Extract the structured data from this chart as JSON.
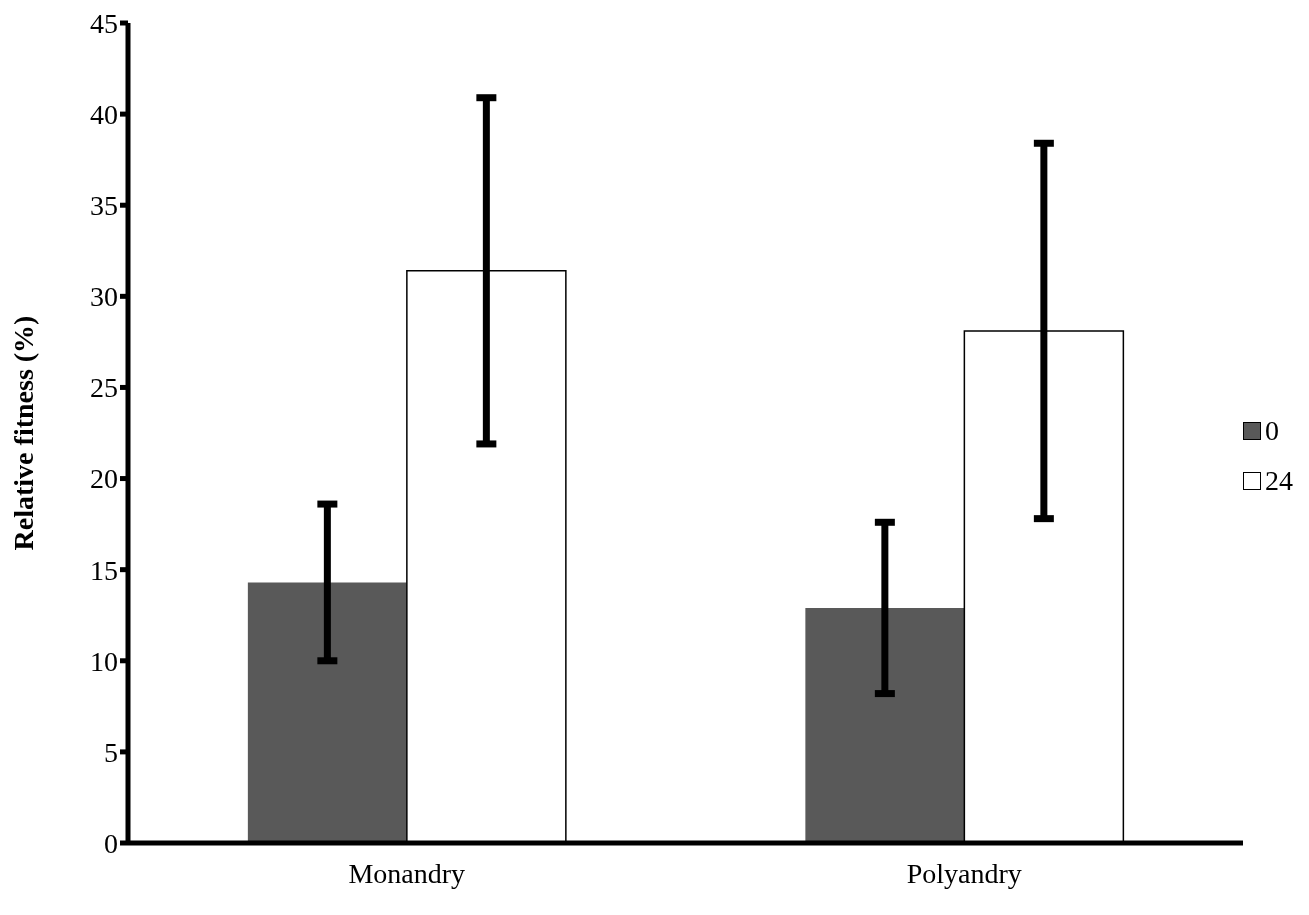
{
  "chart_data": {
    "type": "bar",
    "ylabel": "Relative fitness (%)",
    "categories": [
      "Monandry",
      "Polyandry"
    ],
    "series": [
      {
        "name": "0",
        "color": "#595959",
        "values": [
          14.3,
          12.9
        ],
        "errors": [
          4.3,
          4.7
        ]
      },
      {
        "name": "24",
        "color": "#ffffff",
        "values": [
          31.4,
          28.1
        ],
        "errors": [
          9.5,
          10.3
        ]
      }
    ],
    "ylim": [
      0,
      45
    ],
    "yticks": [
      0,
      5,
      10,
      15,
      20,
      25,
      30,
      35,
      40,
      45
    ],
    "grid": false,
    "legend": "right"
  }
}
